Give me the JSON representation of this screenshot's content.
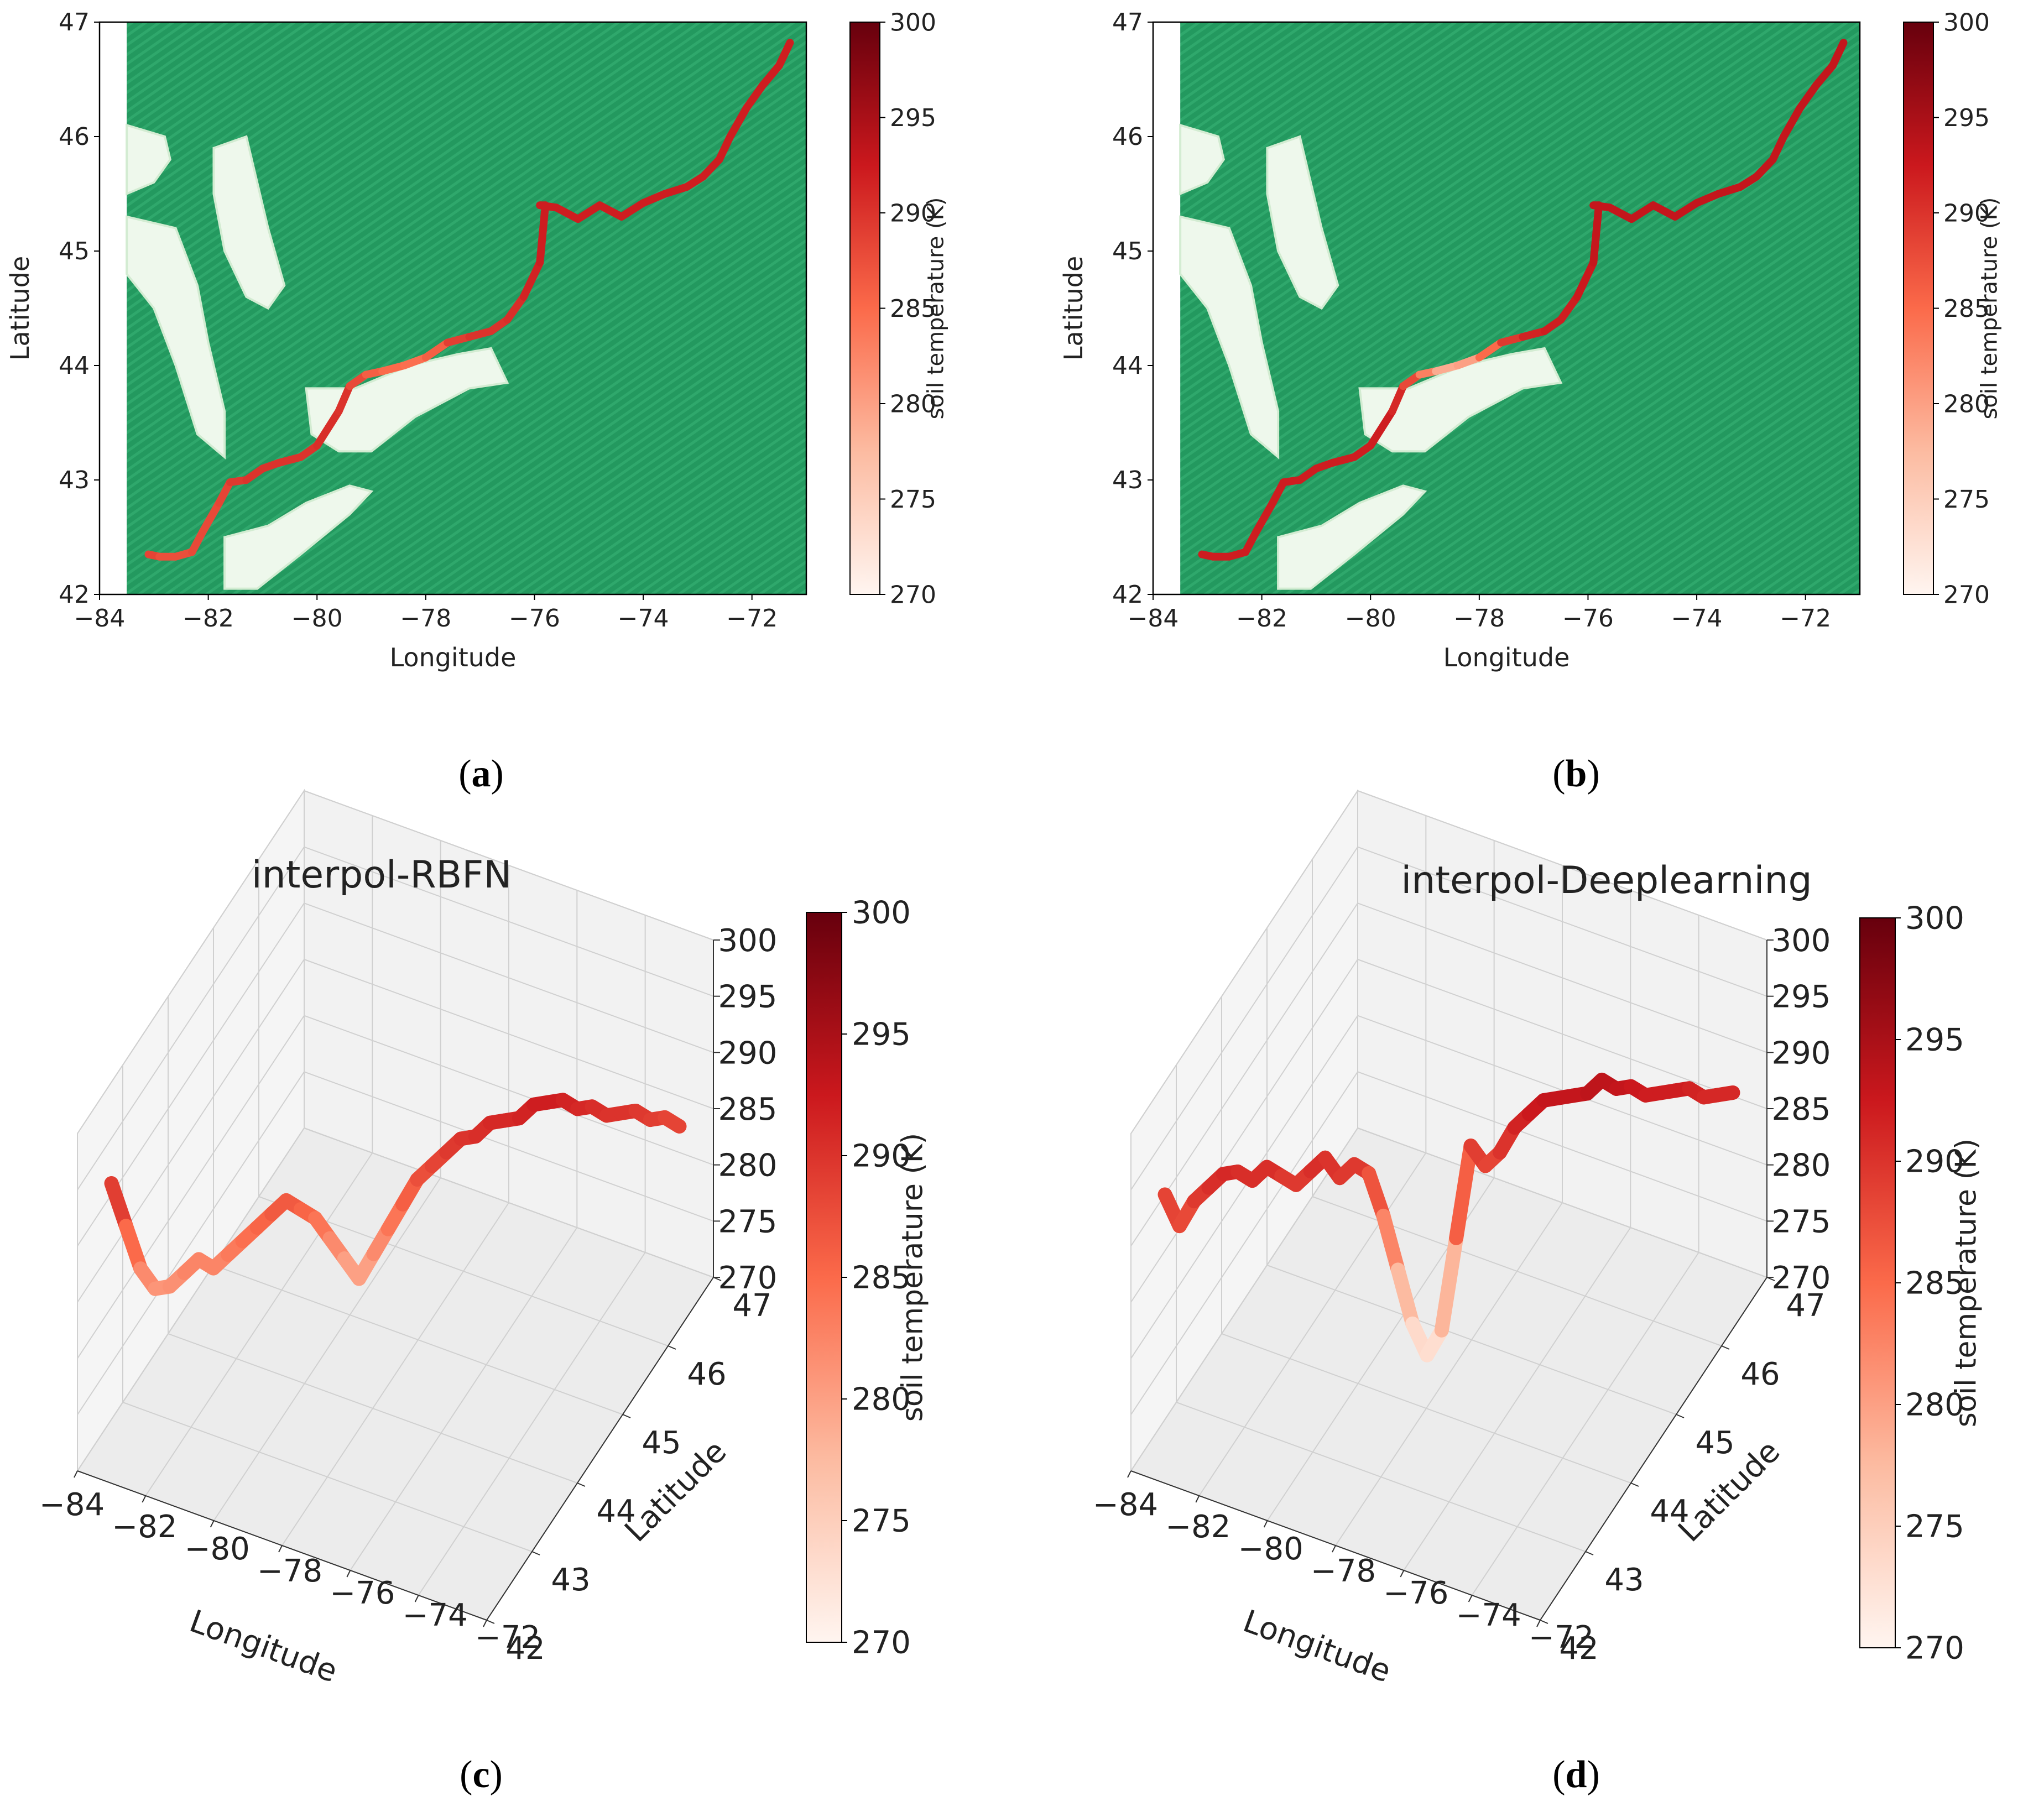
{
  "chart_data": [
    {
      "id": "a",
      "type": "scatter",
      "caption_prefix": "(",
      "caption_letter": "a",
      "caption_suffix": ")",
      "xlabel": "Longitude",
      "ylabel": "Latitude",
      "xlim": [
        -84,
        -71
      ],
      "ylim": [
        42,
        47
      ],
      "xticks": [
        "−84",
        "−82",
        "−80",
        "−78",
        "−76",
        "−74",
        "−72"
      ],
      "yticks": [
        "42",
        "43",
        "44",
        "45",
        "46",
        "47"
      ],
      "colorbar": {
        "label": "soil temperature (K)",
        "min": 270,
        "max": 300,
        "ticks": [
          "270",
          "275",
          "280",
          "285",
          "290",
          "295",
          "300"
        ]
      },
      "background_colormap": "Greens",
      "track_colormap": "Reds",
      "track": {
        "lon": [
          -83.1,
          -82.9,
          -82.6,
          -82.3,
          -82.1,
          -81.8,
          -81.6,
          -81.3,
          -81.0,
          -80.7,
          -80.3,
          -80.0,
          -79.6,
          -79.4,
          -79.1,
          -78.8,
          -78.4,
          -78.0,
          -77.6,
          -77.2,
          -76.8,
          -76.5,
          -76.2,
          -75.9,
          -75.8,
          -75.9,
          -75.6,
          -75.2,
          -74.8,
          -74.4,
          -74.0,
          -73.6,
          -73.2,
          -72.9,
          -72.6,
          -72.4,
          -72.1,
          -71.8,
          -71.5,
          -71.3
        ],
        "lat": [
          42.35,
          42.33,
          42.33,
          42.37,
          42.55,
          42.8,
          42.98,
          43.0,
          43.1,
          43.15,
          43.2,
          43.3,
          43.6,
          43.82,
          43.92,
          43.95,
          44.0,
          44.07,
          44.2,
          44.25,
          44.3,
          44.4,
          44.6,
          44.9,
          45.4,
          45.4,
          45.38,
          45.28,
          45.4,
          45.3,
          45.42,
          45.5,
          45.56,
          45.65,
          45.8,
          46.0,
          46.25,
          46.45,
          46.62,
          46.82
        ],
        "temp": [
          289,
          288,
          287,
          288,
          288,
          288,
          289,
          290,
          290,
          290,
          290,
          290,
          291,
          289,
          287,
          285,
          285,
          284,
          288,
          290,
          290,
          290,
          291,
          292,
          292,
          292,
          292,
          292,
          292,
          292,
          292,
          292,
          292,
          292,
          292,
          292,
          292,
          292,
          292,
          292
        ]
      }
    },
    {
      "id": "b",
      "type": "scatter",
      "caption_prefix": "(",
      "caption_letter": "b",
      "caption_suffix": ")",
      "xlabel": "Longitude",
      "ylabel": "Latitude",
      "xlim": [
        -84,
        -71
      ],
      "ylim": [
        42,
        47
      ],
      "xticks": [
        "−84",
        "−82",
        "−80",
        "−78",
        "−76",
        "−74",
        "−72"
      ],
      "yticks": [
        "42",
        "43",
        "44",
        "45",
        "46",
        "47"
      ],
      "colorbar": {
        "label": "soil temperature (K)",
        "min": 270,
        "max": 300,
        "ticks": [
          "270",
          "275",
          "280",
          "285",
          "290",
          "295",
          "300"
        ]
      },
      "background_colormap": "Greens",
      "track_colormap": "Reds",
      "track": {
        "lon": [
          -83.1,
          -82.9,
          -82.6,
          -82.3,
          -82.1,
          -81.8,
          -81.6,
          -81.3,
          -81.0,
          -80.7,
          -80.3,
          -80.0,
          -79.6,
          -79.4,
          -79.1,
          -78.8,
          -78.4,
          -78.0,
          -77.6,
          -77.2,
          -76.8,
          -76.5,
          -76.2,
          -75.9,
          -75.8,
          -75.9,
          -75.6,
          -75.2,
          -74.8,
          -74.4,
          -74.0,
          -73.6,
          -73.2,
          -72.9,
          -72.6,
          -72.4,
          -72.1,
          -71.8,
          -71.5,
          -71.3
        ],
        "lat": [
          42.35,
          42.33,
          42.33,
          42.37,
          42.55,
          42.8,
          42.98,
          43.0,
          43.1,
          43.15,
          43.2,
          43.3,
          43.6,
          43.82,
          43.92,
          43.95,
          44.0,
          44.07,
          44.2,
          44.25,
          44.3,
          44.4,
          44.6,
          44.9,
          45.4,
          45.4,
          45.38,
          45.28,
          45.4,
          45.3,
          45.42,
          45.5,
          45.56,
          45.65,
          45.8,
          46.0,
          46.25,
          46.45,
          46.62,
          46.82
        ],
        "temp": [
          292,
          292,
          292,
          292,
          292,
          292,
          292,
          292,
          292,
          292,
          292,
          292,
          292,
          290,
          286,
          280,
          278,
          282,
          288,
          291,
          292,
          292,
          292,
          293,
          293,
          293,
          293,
          293,
          293,
          293,
          293,
          293,
          293,
          293,
          293,
          293,
          293,
          293,
          293,
          293
        ]
      }
    },
    {
      "id": "c",
      "type": "scatter3d",
      "title": "interpol-RBFN",
      "caption_prefix": "(",
      "caption_letter": "c",
      "caption_suffix": ")",
      "xlabel": "Longitude",
      "ylabel": "Latitude",
      "xticks": [
        "−84",
        "−82",
        "−80",
        "−78",
        "−76",
        "−74",
        "−72"
      ],
      "yticks": [
        "42",
        "43",
        "44",
        "45",
        "46",
        "47"
      ],
      "zticks": [
        "270",
        "275",
        "280",
        "285",
        "290",
        "295",
        "300"
      ],
      "zlim": [
        270,
        300
      ],
      "colorbar": {
        "label": "soil temperature (K)",
        "min": 270,
        "max": 300,
        "ticks": [
          "270",
          "275",
          "280",
          "285",
          "290",
          "295",
          "300"
        ]
      },
      "track_colormap": "Reds",
      "series_temp": [
        291,
        287,
        283,
        281,
        281,
        282,
        283,
        282,
        283,
        284,
        285,
        286,
        287,
        286,
        285,
        283,
        281,
        279,
        281,
        283,
        285,
        287,
        288,
        289,
        290,
        290,
        291,
        291,
        291,
        292,
        292,
        292,
        291,
        291,
        290,
        290,
        290,
        289,
        289,
        288
      ]
    },
    {
      "id": "d",
      "type": "scatter3d",
      "title": "interpol-Deeplearning",
      "caption_prefix": "(",
      "caption_letter": "d",
      "caption_suffix": ")",
      "xlabel": "Longitude",
      "ylabel": "Latitude",
      "xticks": [
        "−84",
        "−82",
        "−80",
        "−78",
        "−76",
        "−74",
        "−72"
      ],
      "yticks": [
        "42",
        "43",
        "44",
        "45",
        "46",
        "47"
      ],
      "zticks": [
        "270",
        "275",
        "280",
        "285",
        "290",
        "295",
        "300"
      ],
      "zlim": [
        270,
        300
      ],
      "colorbar": {
        "label": "soil temperature (K)",
        "min": 270,
        "max": 300,
        "ticks": [
          "270",
          "275",
          "280",
          "285",
          "290",
          "295",
          "300"
        ]
      },
      "track_colormap": "Reds",
      "series_temp": [
        290,
        287,
        289,
        290,
        291,
        291,
        290,
        291,
        290,
        289,
        290,
        291,
        289,
        290,
        289,
        285,
        280,
        275,
        272,
        274,
        282,
        290,
        288,
        289,
        291,
        292,
        293,
        293,
        293,
        293,
        294,
        293,
        293,
        292,
        292,
        292,
        292,
        291,
        291,
        291
      ]
    }
  ]
}
